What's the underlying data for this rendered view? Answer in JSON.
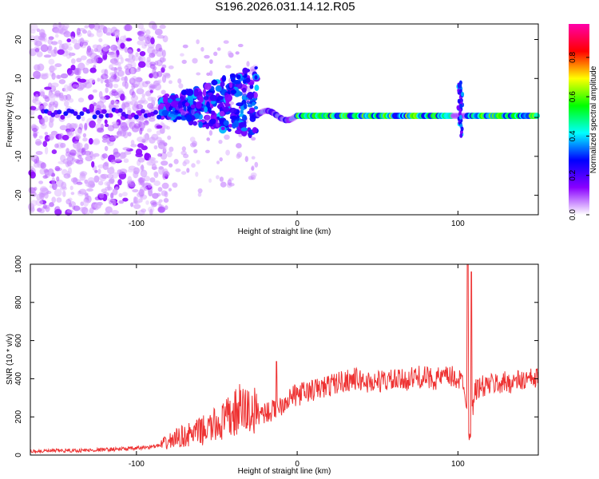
{
  "chart_data": [
    {
      "type": "heatmap",
      "title": "S196.2026.031.14.12.R05",
      "xlabel": "Height of straight line (km)",
      "ylabel": "Frequency (Hz)",
      "xlim": [
        -166,
        150
      ],
      "ylim": [
        -25,
        24
      ],
      "xticks": [
        -100,
        0,
        100
      ],
      "yticks": [
        20,
        10,
        0,
        -10,
        -20
      ],
      "colorbar": {
        "label": "Normalized spectral amplitude",
        "range": [
          0.0,
          0.97
        ],
        "ticks": [
          "0.0",
          "0.2",
          "0.4",
          "0.6",
          "0.8"
        ],
        "colors": [
          "#ffffff",
          "#8a00ff",
          "#0000ff",
          "#00ffff",
          "#00ff00",
          "#ffff00",
          "#ff0000",
          "#ff00aa"
        ]
      },
      "description_series": {
        "noise_region_km": [
          -166,
          -85
        ],
        "rising_region_km": [
          -85,
          -25
        ],
        "stable_region_km": [
          -25,
          150
        ],
        "spike_km": 101
      }
    },
    {
      "type": "line",
      "xlabel": "Height of straight line (km)",
      "ylabel": "SNR (10 * v/v)",
      "xlim": [
        -166,
        150
      ],
      "ylim": [
        0,
        1000
      ],
      "xticks": [
        -100,
        0,
        100
      ],
      "yticks": [
        0,
        200,
        400,
        600,
        800,
        1000
      ],
      "series": [
        {
          "name": "SNR",
          "color": "#ee3333",
          "x": [
            -166,
            -130,
            -100,
            -85,
            -75,
            -65,
            -55,
            -45,
            -35,
            -25,
            -15,
            -5,
            5,
            15,
            25,
            35,
            45,
            55,
            65,
            75,
            85,
            95,
            100,
            104,
            106,
            108,
            110,
            112,
            120,
            130,
            140,
            150
          ],
          "y": [
            20,
            25,
            35,
            50,
            90,
            110,
            140,
            180,
            240,
            220,
            230,
            300,
            330,
            350,
            380,
            400,
            380,
            390,
            390,
            410,
            400,
            410,
            400,
            380,
            150,
            120,
            330,
            350,
            370,
            380,
            390,
            400
          ]
        }
      ]
    }
  ]
}
